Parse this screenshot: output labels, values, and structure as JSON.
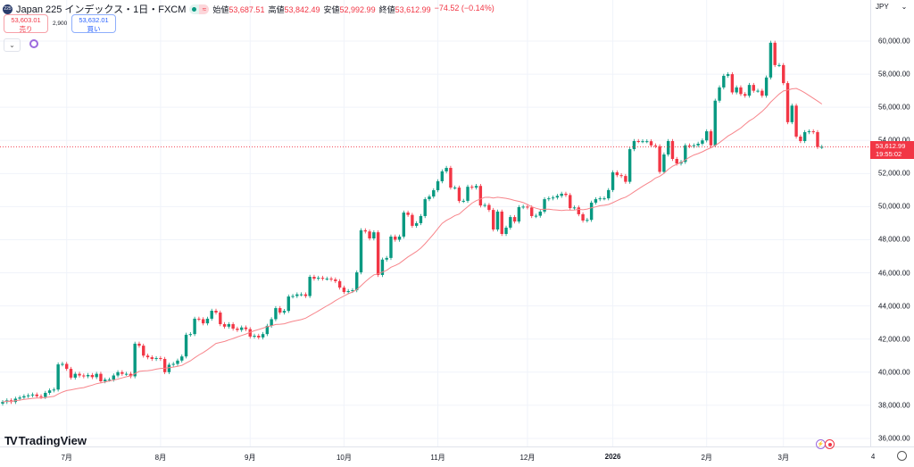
{
  "header": {
    "symbol_icon": "225",
    "title": "Japan 225 インデックス・1日・FXCM",
    "ohlc": [
      {
        "label": "始値",
        "value": "53,687.51"
      },
      {
        "label": "高値",
        "value": "53,842.49"
      },
      {
        "label": "安値",
        "value": "52,992.99"
      },
      {
        "label": "終値",
        "value": "53,612.99"
      }
    ],
    "change": "−74.52 (−0.14%)",
    "pill_icon": "≈"
  },
  "trade": {
    "sell_price": "53,603.01",
    "sell_label": "売り",
    "spread": "2,900",
    "buy_price": "53,632.01",
    "buy_label": "買い"
  },
  "currency": "JPY",
  "current_price": {
    "value": "53,612.99",
    "countdown": "19:55:02"
  },
  "brand": "TradingView",
  "colors": {
    "up": "#089981",
    "down": "#f23645",
    "ma": "#f7858b",
    "grid": "#f0f3fa"
  },
  "chart_data": {
    "type": "candlestick",
    "title": "Japan 225 インデックス・1日・FXCM",
    "ylabel": "JPY",
    "ylim": [
      35500,
      61500
    ],
    "y_ticks": [
      "36,000.00",
      "38,000.00",
      "40,000.00",
      "42,000.00",
      "44,000.00",
      "46,000.00",
      "48,000.00",
      "50,000.00",
      "52,000.00",
      "54,000.00",
      "56,000.00",
      "58,000.00",
      "60,000.00"
    ],
    "y_tick_values": [
      36000,
      38000,
      40000,
      42000,
      44000,
      46000,
      48000,
      50000,
      52000,
      54000,
      56000,
      58000,
      60000
    ],
    "x_ticks": [
      {
        "label": "7月",
        "index": 15
      },
      {
        "label": "8月",
        "index": 37
      },
      {
        "label": "9月",
        "index": 58
      },
      {
        "label": "10月",
        "index": 80
      },
      {
        "label": "11月",
        "index": 102
      },
      {
        "label": "12月",
        "index": 123
      },
      {
        "label": "2026",
        "index": 143,
        "bold": true
      },
      {
        "label": "2月",
        "index": 165
      },
      {
        "label": "3月",
        "index": 183
      },
      {
        "label": "4",
        "index": 204
      }
    ],
    "series": [
      {
        "name": "close",
        "values": [
          38200,
          38300,
          38200,
          38400,
          38470,
          38550,
          38600,
          38650,
          38550,
          38500,
          38750,
          38900,
          38950,
          40470,
          40500,
          40200,
          39670,
          39900,
          39800,
          39750,
          39830,
          39700,
          39900,
          39450,
          39550,
          39550,
          39800,
          40000,
          39900,
          39900,
          39750,
          41720,
          41600,
          41000,
          40900,
          40800,
          40850,
          40800,
          40000,
          40450,
          40500,
          40700,
          40950,
          42260,
          42300,
          43230,
          43200,
          42950,
          43230,
          43710,
          43600,
          42900,
          42750,
          42900,
          42630,
          42550,
          42700,
          42600,
          42150,
          42200,
          42100,
          42300,
          42800,
          43200,
          43870,
          43600,
          43700,
          44570,
          44600,
          44700,
          44700,
          44600,
          45760,
          45650,
          45700,
          45650,
          45650,
          45600,
          45500,
          45110,
          44840,
          44900,
          44950,
          46030,
          48570,
          48500,
          48080,
          48450,
          45870,
          46800,
          46900,
          48190,
          48000,
          48190,
          49640,
          49500,
          48840,
          49000,
          49430,
          50450,
          50610,
          50990,
          51530,
          52130,
          52340,
          51150,
          51150,
          50340,
          50350,
          51200,
          51150,
          51250,
          50070,
          50100,
          49800,
          48620,
          49700,
          48350,
          48730,
          49370,
          49100,
          49970,
          50000,
          49950,
          49430,
          49450,
          49700,
          50450,
          50500,
          50550,
          50650,
          50780,
          50700,
          49910,
          49950,
          49540,
          49160,
          49200,
          50240,
          50450,
          50500,
          50500,
          51000,
          52070,
          51900,
          51850,
          51500,
          53470,
          53960,
          53950,
          53950,
          53950,
          53700,
          53650,
          52100,
          53150,
          53960,
          52880,
          52600,
          52700,
          53700,
          53650,
          53700,
          53800,
          54000,
          54550,
          53700,
          56400,
          57200,
          57900,
          58000,
          56900,
          57200,
          56800,
          56700,
          57350,
          57000,
          57000,
          56700,
          57800,
          59900,
          58550,
          58550,
          57460,
          55100,
          56100,
          54230,
          53960,
          54500,
          54550,
          54500,
          53600,
          53612.99
        ]
      },
      {
        "name": "SMA 20",
        "derived_from": "close",
        "period": 20
      }
    ],
    "grid": true
  }
}
